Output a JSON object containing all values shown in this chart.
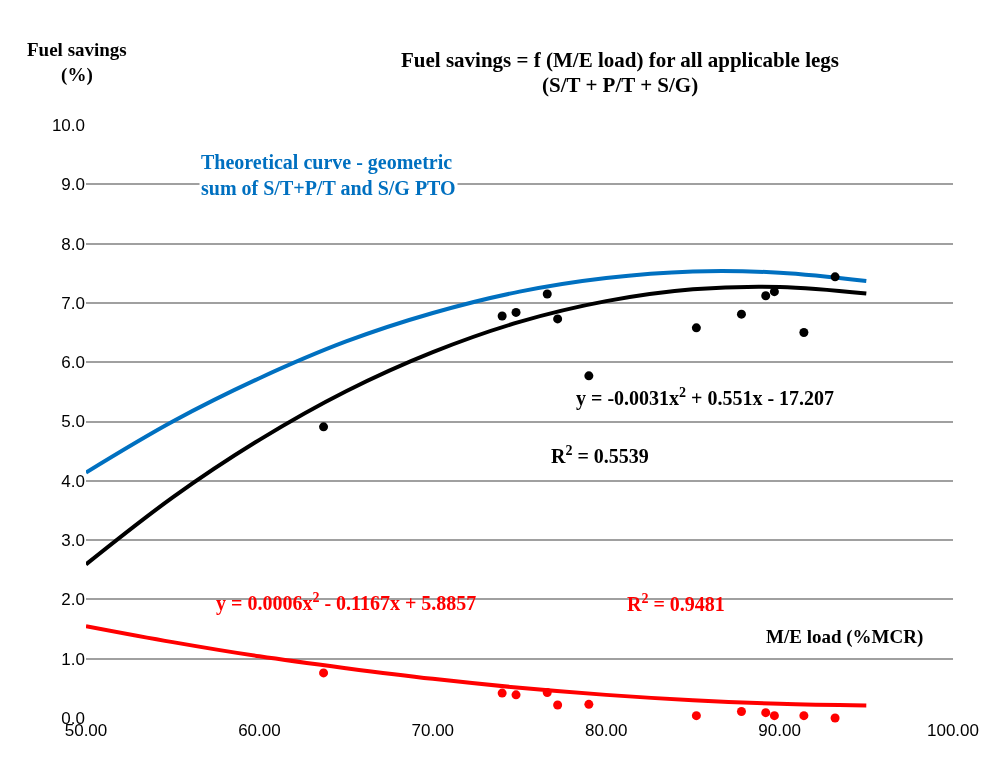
{
  "chart_data": {
    "type": "scatter",
    "title": "Fuel savings = f (M/E load) for all applicable legs",
    "subtitle": "(S/T + P/T + S/G)",
    "xlabel": "M/E load (%MCR)",
    "ylabel": "Fuel savings\n(%)",
    "x": [
      63.7,
      74.0,
      74.8,
      76.6,
      77.2,
      79.0,
      85.2,
      87.8,
      89.2,
      89.7,
      91.4,
      93.2
    ],
    "series": [
      {
        "color": "#000000",
        "marker": "circle",
        "values": [
          4.91,
          6.78,
          6.84,
          7.15,
          6.73,
          5.77,
          6.58,
          6.81,
          7.12,
          7.19,
          6.5,
          7.44
        ]
      },
      {
        "color": "#ff0000",
        "marker": "circle",
        "values": [
          0.76,
          0.42,
          0.39,
          0.43,
          0.22,
          0.23,
          0.04,
          0.11,
          0.09,
          0.04,
          0.04,
          0.0
        ]
      },
      {
        "type": "line",
        "color": "#000000",
        "x": [
          50,
          55,
          60,
          65,
          70,
          75,
          80,
          85,
          90,
          95
        ],
        "values": [
          2.59,
          3.72,
          4.69,
          5.51,
          6.17,
          6.68,
          7.03,
          7.23,
          7.27,
          7.16
        ]
      },
      {
        "type": "line",
        "color": "#ff0000",
        "x": [
          50,
          55,
          60,
          65,
          70,
          75,
          80,
          85,
          90,
          95
        ],
        "values": [
          1.55,
          1.28,
          1.04,
          0.84,
          0.66,
          0.51,
          0.39,
          0.3,
          0.24,
          0.21
        ]
      },
      {
        "type": "line",
        "color": "#0070c0",
        "x": [
          50,
          55,
          60,
          65,
          70,
          75,
          80,
          85,
          90,
          95
        ],
        "values": [
          4.14,
          5.0,
          5.73,
          6.35,
          6.83,
          7.19,
          7.42,
          7.53,
          7.51,
          7.37
        ]
      }
    ],
    "xlim": [
      50,
      100
    ],
    "xticks": [
      {
        "value": 50,
        "label": "50.00"
      },
      {
        "value": 60,
        "label": "60.00"
      },
      {
        "value": 70,
        "label": "70.00"
      },
      {
        "value": 80,
        "label": "80.00"
      },
      {
        "value": 90,
        "label": "90.00"
      },
      {
        "value": 100,
        "label": "100.00"
      }
    ],
    "ylim": [
      0,
      10
    ],
    "yticks": [
      {
        "value": 0,
        "label": "0.0"
      },
      {
        "value": 1,
        "label": "1.0"
      },
      {
        "value": 2,
        "label": "2.0"
      },
      {
        "value": 3,
        "label": "3.0"
      },
      {
        "value": 4,
        "label": "4.0"
      },
      {
        "value": 5,
        "label": "5.0"
      },
      {
        "value": 6,
        "label": "6.0"
      },
      {
        "value": 7,
        "label": "7.0"
      },
      {
        "value": 8,
        "label": "8.0"
      },
      {
        "value": 9,
        "label": "9.0"
      },
      {
        "value": 10,
        "label": "10.0"
      }
    ],
    "grid": "y",
    "annotations": [
      "Theoretical curve - geometric\nsum of S/T+P/T and S/G PTO",
      "y = -0.0031x$^{2}$ + 0.551x - 17.207",
      "R$^{2}$ = 0.5539",
      "y = 0.0006x$^{2}$ - 0.1167x + 5.8857",
      "R$^{2}$ = 0.9481"
    ]
  }
}
